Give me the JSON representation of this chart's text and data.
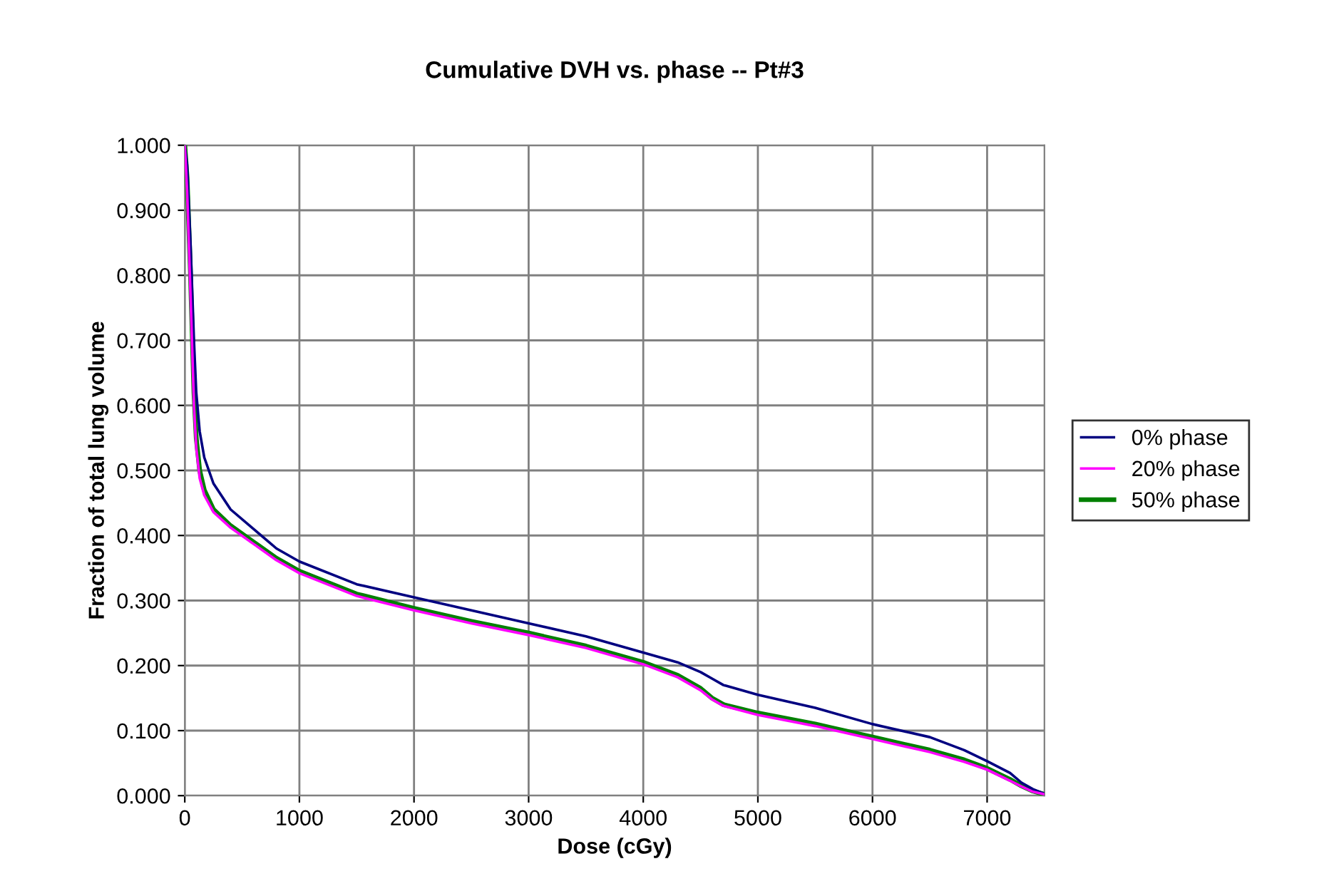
{
  "chart_data": {
    "type": "line",
    "title": "Cumulative DVH vs. phase -- Pt#3",
    "xlabel": "Dose (cGy)",
    "ylabel": "Fraction of total lung volume",
    "xlim": [
      0,
      7500
    ],
    "xticks": [
      0,
      1000,
      2000,
      3000,
      4000,
      5000,
      6000,
      7000
    ],
    "ylim": [
      0,
      1
    ],
    "yticks": [
      {
        "value": 0,
        "label": "0.000"
      },
      {
        "value": 0.1,
        "label": "0.100"
      },
      {
        "value": 0.2,
        "label": "0.200"
      },
      {
        "value": 0.3,
        "label": "0.300"
      },
      {
        "value": 0.4,
        "label": "0.400"
      },
      {
        "value": 0.5,
        "label": "0.500"
      },
      {
        "value": 0.6,
        "label": "0.600"
      },
      {
        "value": 0.7,
        "label": "0.700"
      },
      {
        "value": 0.8,
        "label": "0.800"
      },
      {
        "value": 0.9,
        "label": "0.900"
      },
      {
        "value": 1,
        "label": "1.000"
      }
    ],
    "x": [
      0,
      20,
      50,
      80,
      100,
      130,
      170,
      250,
      400,
      600,
      800,
      1000,
      1500,
      2000,
      2500,
      3000,
      3500,
      4000,
      4300,
      4500,
      4600,
      4700,
      5000,
      5500,
      6000,
      6500,
      6800,
      7000,
      7200,
      7300,
      7400,
      7500
    ],
    "grid": true,
    "legend": "right",
    "marker": "none",
    "line_style": "solid",
    "series": [
      {
        "name": "0% phase",
        "color": "#000080",
        "values": [
          1.0,
          0.97,
          0.85,
          0.7,
          0.62,
          0.56,
          0.52,
          0.48,
          0.44,
          0.41,
          0.38,
          0.36,
          0.325,
          0.305,
          0.285,
          0.265,
          0.245,
          0.22,
          0.205,
          0.19,
          0.18,
          0.17,
          0.155,
          0.135,
          0.11,
          0.09,
          0.07,
          0.053,
          0.035,
          0.02,
          0.01,
          0.003
        ]
      },
      {
        "name": "20% phase",
        "color": "#ff00ff",
        "values": [
          1.0,
          0.93,
          0.77,
          0.6,
          0.535,
          0.488,
          0.462,
          0.436,
          0.412,
          0.387,
          0.362,
          0.342,
          0.307,
          0.285,
          0.265,
          0.247,
          0.227,
          0.202,
          0.182,
          0.162,
          0.148,
          0.138,
          0.124,
          0.107,
          0.087,
          0.067,
          0.052,
          0.04,
          0.023,
          0.014,
          0.006,
          0.002
        ]
      },
      {
        "name": "50% phase",
        "color": "#008000",
        "values": [
          1.0,
          0.95,
          0.8,
          0.62,
          0.55,
          0.5,
          0.47,
          0.44,
          0.415,
          0.39,
          0.365,
          0.345,
          0.31,
          0.288,
          0.268,
          0.25,
          0.23,
          0.205,
          0.185,
          0.165,
          0.15,
          0.14,
          0.127,
          0.11,
          0.09,
          0.07,
          0.055,
          0.042,
          0.025,
          0.015,
          0.007,
          0.002
        ]
      }
    ]
  }
}
